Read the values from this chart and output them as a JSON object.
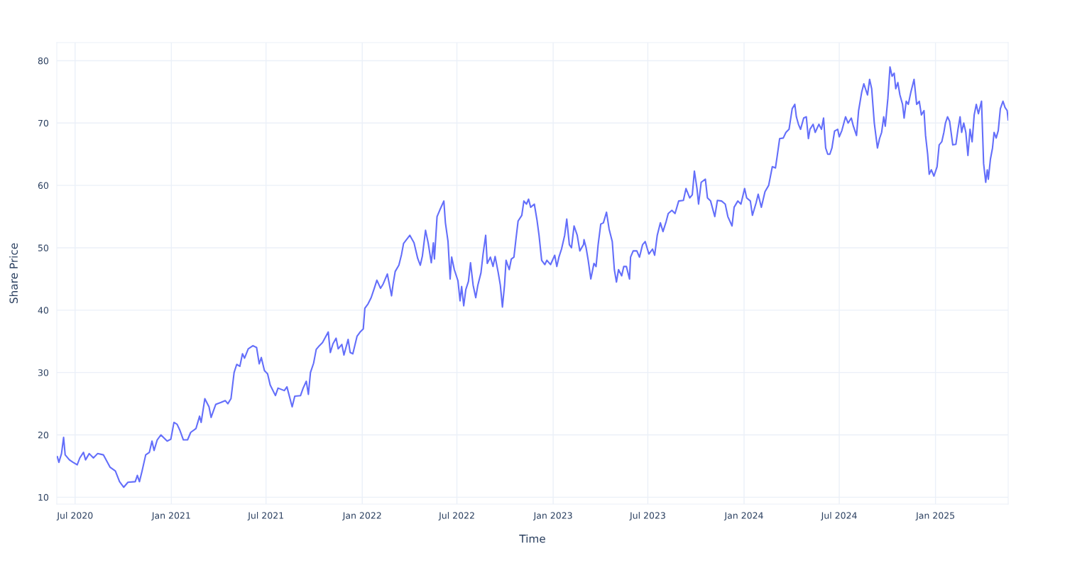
{
  "chart_data": {
    "type": "line",
    "xlabel": "Time",
    "ylabel": "Share Price",
    "grid": true,
    "marker": "none",
    "line_style": "solid",
    "xlim": [
      "2020-05-27",
      "2025-05-20"
    ],
    "ylim": [
      8.9,
      82.9
    ],
    "xticks": [
      {
        "value": "2020-07-01",
        "label": "Jul 2020"
      },
      {
        "value": "2021-01-01",
        "label": "Jan 2021"
      },
      {
        "value": "2021-07-01",
        "label": "Jul 2021"
      },
      {
        "value": "2022-01-01",
        "label": "Jan 2022"
      },
      {
        "value": "2022-07-01",
        "label": "Jul 2022"
      },
      {
        "value": "2023-01-01",
        "label": "Jan 2023"
      },
      {
        "value": "2023-07-01",
        "label": "Jul 2023"
      },
      {
        "value": "2024-01-01",
        "label": "Jan 2024"
      },
      {
        "value": "2024-07-01",
        "label": "Jul 2024"
      },
      {
        "value": "2025-01-01",
        "label": "Jan 2025"
      }
    ],
    "yticks": [
      10,
      20,
      30,
      40,
      50,
      60,
      70,
      80
    ],
    "series": [
      {
        "color": "#636efa",
        "x": [
          "2020-05-28",
          "2020-05-31",
          "2020-06-05",
          "2020-06-09",
          "2020-06-12",
          "2020-06-20",
          "2020-06-27",
          "2020-07-05",
          "2020-07-10",
          "2020-07-17",
          "2020-07-21",
          "2020-07-28",
          "2020-08-05",
          "2020-08-13",
          "2020-08-24",
          "2020-09-06",
          "2020-09-16",
          "2020-09-24",
          "2020-10-02",
          "2020-10-10",
          "2020-10-24",
          "2020-10-28",
          "2020-11-01",
          "2020-11-06",
          "2020-11-13",
          "2020-11-20",
          "2020-11-25",
          "2020-11-29",
          "2020-12-05",
          "2020-12-12",
          "2020-12-24",
          "2020-12-31",
          "2021-01-06",
          "2021-01-12",
          "2021-01-17",
          "2021-01-24",
          "2021-02-01",
          "2021-02-07",
          "2021-02-17",
          "2021-02-24",
          "2021-02-27",
          "2021-03-06",
          "2021-03-14",
          "2021-03-18",
          "2021-03-27",
          "2021-04-06",
          "2021-04-14",
          "2021-04-19",
          "2021-04-25",
          "2021-05-01",
          "2021-05-06",
          "2021-05-12",
          "2021-05-17",
          "2021-05-21",
          "2021-05-28",
          "2021-06-06",
          "2021-06-13",
          "2021-06-18",
          "2021-06-22",
          "2021-06-28",
          "2021-07-04",
          "2021-07-09",
          "2021-07-19",
          "2021-07-24",
          "2021-08-05",
          "2021-08-10",
          "2021-08-20",
          "2021-08-25",
          "2021-09-05",
          "2021-09-10",
          "2021-09-16",
          "2021-09-20",
          "2021-09-24",
          "2021-09-30",
          "2021-10-05",
          "2021-10-11",
          "2021-10-17",
          "2021-10-28",
          "2021-11-01",
          "2021-11-06",
          "2021-11-12",
          "2021-11-16",
          "2021-11-23",
          "2021-11-27",
          "2021-12-05",
          "2021-12-09",
          "2021-12-14",
          "2021-12-22",
          "2021-12-28",
          "2022-01-03",
          "2022-01-06",
          "2022-01-12",
          "2022-01-18",
          "2022-01-24",
          "2022-01-29",
          "2022-02-05",
          "2022-02-10",
          "2022-02-18",
          "2022-02-26",
          "2022-03-01",
          "2022-03-05",
          "2022-03-12",
          "2022-03-17",
          "2022-03-21",
          "2022-04-02",
          "2022-04-10",
          "2022-04-17",
          "2022-04-22",
          "2022-04-26",
          "2022-05-02",
          "2022-05-07",
          "2022-05-13",
          "2022-05-17",
          "2022-05-19",
          "2022-05-24",
          "2022-05-29",
          "2022-06-06",
          "2022-06-09",
          "2022-06-14",
          "2022-06-18",
          "2022-06-21",
          "2022-06-26",
          "2022-07-03",
          "2022-07-07",
          "2022-07-10",
          "2022-07-14",
          "2022-07-18",
          "2022-07-23",
          "2022-07-27",
          "2022-08-01",
          "2022-08-06",
          "2022-08-10",
          "2022-08-16",
          "2022-08-20",
          "2022-08-25",
          "2022-08-28",
          "2022-09-03",
          "2022-09-08",
          "2022-09-12",
          "2022-09-18",
          "2022-09-22",
          "2022-09-26",
          "2022-09-30",
          "2022-10-03",
          "2022-10-09",
          "2022-10-13",
          "2022-10-18",
          "2022-10-22",
          "2022-10-26",
          "2022-11-02",
          "2022-11-06",
          "2022-11-11",
          "2022-11-15",
          "2022-11-19",
          "2022-11-26",
          "2022-12-01",
          "2022-12-05",
          "2022-12-10",
          "2022-12-16",
          "2022-12-20",
          "2022-12-27",
          "2023-01-04",
          "2023-01-08",
          "2023-01-12",
          "2023-01-17",
          "2023-01-23",
          "2023-01-27",
          "2023-02-01",
          "2023-02-05",
          "2023-02-10",
          "2023-02-16",
          "2023-02-21",
          "2023-02-28",
          "2023-03-01",
          "2023-03-05",
          "2023-03-09",
          "2023-03-14",
          "2023-03-20",
          "2023-03-24",
          "2023-03-28",
          "2023-04-02",
          "2023-04-07",
          "2023-04-13",
          "2023-04-18",
          "2023-04-24",
          "2023-04-28",
          "2023-05-02",
          "2023-05-06",
          "2023-05-12",
          "2023-05-16",
          "2023-05-21",
          "2023-05-27",
          "2023-05-29",
          "2023-06-03",
          "2023-06-10",
          "2023-06-15",
          "2023-06-21",
          "2023-06-26",
          "2023-07-03",
          "2023-07-10",
          "2023-07-14",
          "2023-07-19",
          "2023-07-25",
          "2023-07-30",
          "2023-08-05",
          "2023-08-09",
          "2023-08-16",
          "2023-08-22",
          "2023-08-29",
          "2023-09-07",
          "2023-09-12",
          "2023-09-19",
          "2023-09-24",
          "2023-09-28",
          "2023-10-03",
          "2023-10-06",
          "2023-10-11",
          "2023-10-19",
          "2023-10-23",
          "2023-10-29",
          "2023-11-06",
          "2023-11-11",
          "2023-11-19",
          "2023-11-26",
          "2023-12-01",
          "2023-12-09",
          "2023-12-13",
          "2023-12-20",
          "2023-12-26",
          "2024-01-02",
          "2024-01-06",
          "2024-01-13",
          "2024-01-17",
          "2024-01-24",
          "2024-01-28",
          "2024-02-03",
          "2024-02-10",
          "2024-02-17",
          "2024-02-24",
          "2024-03-01",
          "2024-03-04",
          "2024-03-09",
          "2024-03-16",
          "2024-03-21",
          "2024-03-27",
          "2024-04-02",
          "2024-04-07",
          "2024-04-10",
          "2024-04-14",
          "2024-04-18",
          "2024-04-24",
          "2024-04-29",
          "2024-05-03",
          "2024-05-06",
          "2024-05-12",
          "2024-05-16",
          "2024-05-23",
          "2024-05-28",
          "2024-06-01",
          "2024-06-05",
          "2024-06-09",
          "2024-06-13",
          "2024-06-17",
          "2024-06-22",
          "2024-06-28",
          "2024-07-01",
          "2024-07-06",
          "2024-07-13",
          "2024-07-18",
          "2024-07-24",
          "2024-07-28",
          "2024-08-03",
          "2024-08-07",
          "2024-08-13",
          "2024-08-17",
          "2024-08-24",
          "2024-08-28",
          "2024-09-01",
          "2024-09-06",
          "2024-09-12",
          "2024-09-16",
          "2024-09-20",
          "2024-09-24",
          "2024-09-27",
          "2024-10-02",
          "2024-10-06",
          "2024-10-10",
          "2024-10-14",
          "2024-10-17",
          "2024-10-21",
          "2024-10-25",
          "2024-10-30",
          "2024-11-02",
          "2024-11-06",
          "2024-11-10",
          "2024-11-15",
          "2024-11-21",
          "2024-11-26",
          "2024-12-01",
          "2024-12-05",
          "2024-12-10",
          "2024-12-13",
          "2024-12-17",
          "2024-12-20",
          "2024-12-24",
          "2024-12-29",
          "2025-01-04",
          "2025-01-08",
          "2025-01-13",
          "2025-01-17",
          "2025-01-20",
          "2025-01-24",
          "2025-01-28",
          "2025-02-03",
          "2025-02-09",
          "2025-02-13",
          "2025-02-17",
          "2025-02-20",
          "2025-02-24",
          "2025-02-28",
          "2025-03-04",
          "2025-03-08",
          "2025-03-12",
          "2025-03-16",
          "2025-03-20",
          "2025-03-24",
          "2025-03-30",
          "2025-04-03",
          "2025-04-07",
          "2025-04-10",
          "2025-04-12",
          "2025-04-16",
          "2025-04-20",
          "2025-04-23",
          "2025-04-27",
          "2025-05-01",
          "2025-05-05",
          "2025-05-10",
          "2025-05-14",
          "2025-05-18",
          "2025-05-20"
        ],
        "values": [
          16.5,
          15.6,
          17.0,
          19.6,
          16.8,
          16.0,
          15.6,
          15.2,
          16.3,
          17.2,
          16.0,
          17.0,
          16.3,
          17.0,
          16.8,
          14.8,
          14.2,
          12.5,
          11.6,
          12.4,
          12.5,
          13.5,
          12.5,
          14.2,
          16.8,
          17.2,
          19.0,
          17.5,
          19.2,
          20.0,
          19.0,
          19.3,
          22.0,
          21.7,
          20.8,
          19.2,
          19.2,
          20.4,
          21.0,
          23.0,
          22.0,
          25.8,
          24.5,
          22.8,
          24.9,
          25.2,
          25.5,
          25.0,
          25.8,
          30.0,
          31.3,
          31.0,
          33.0,
          32.3,
          33.8,
          34.3,
          34.0,
          31.4,
          32.4,
          30.3,
          29.8,
          28.0,
          26.3,
          27.5,
          27.1,
          27.7,
          24.5,
          26.2,
          26.3,
          27.5,
          28.6,
          26.5,
          30.0,
          31.5,
          33.7,
          34.3,
          34.8,
          36.5,
          33.2,
          34.6,
          35.5,
          33.8,
          34.5,
          32.8,
          35.3,
          33.2,
          33.0,
          35.8,
          36.5,
          37.0,
          40.3,
          41.0,
          42.0,
          43.5,
          44.8,
          43.5,
          44.2,
          45.8,
          42.3,
          44.2,
          46.2,
          47.2,
          48.9,
          50.7,
          52.0,
          50.8,
          48.3,
          47.2,
          48.7,
          52.8,
          50.8,
          47.6,
          50.8,
          48.2,
          55.0,
          56.0,
          57.5,
          54.0,
          51.0,
          45.0,
          48.5,
          46.5,
          44.7,
          41.5,
          43.8,
          40.7,
          43.3,
          44.6,
          47.6,
          44.0,
          42.0,
          44.0,
          46.0,
          49.0,
          52.0,
          47.5,
          48.5,
          47.0,
          48.6,
          46.0,
          44.0,
          40.5,
          44.0,
          48.0,
          46.5,
          48.2,
          48.5,
          51.5,
          54.3,
          55.2,
          57.5,
          57.0,
          57.8,
          56.5,
          57.0,
          54.5,
          52.0,
          48.0,
          47.3,
          48.0,
          47.3,
          48.8,
          47.0,
          48.5,
          49.8,
          52.0,
          54.6,
          50.5,
          50.0,
          53.5,
          52.0,
          49.5,
          50.5,
          51.3,
          50.0,
          48.0,
          45.0,
          47.5,
          47.0,
          50.5,
          53.8,
          54.0,
          55.7,
          53.0,
          51.0,
          46.5,
          44.5,
          46.5,
          45.5,
          47.0,
          47.0,
          45.0,
          48.5,
          49.5,
          49.5,
          48.5,
          50.5,
          51.0,
          49.0,
          49.8,
          48.8,
          52.0,
          54.0,
          52.6,
          54.2,
          55.5,
          56.0,
          55.5,
          57.5,
          57.6,
          59.5,
          58.0,
          58.5,
          62.3,
          59.5,
          57.0,
          60.5,
          61.0,
          58.0,
          57.5,
          55.0,
          57.6,
          57.5,
          57.0,
          55.0,
          53.5,
          56.5,
          57.5,
          57.0,
          59.5,
          58.0,
          57.5,
          55.2,
          57.2,
          58.6,
          56.5,
          59.0,
          60.0,
          63.0,
          62.8,
          64.5,
          67.5,
          67.6,
          68.5,
          69.0,
          72.3,
          73.0,
          71.0,
          69.8,
          69.0,
          70.8,
          71.0,
          67.5,
          69.0,
          69.8,
          68.5,
          69.8,
          69.0,
          70.8,
          66.0,
          65.0,
          65.0,
          66.0,
          68.7,
          69.0,
          67.8,
          68.8,
          71.0,
          70.0,
          70.8,
          69.5,
          68.0,
          72.0,
          75.0,
          76.3,
          74.5,
          77.0,
          75.5,
          70.0,
          66.0,
          67.5,
          68.5,
          71.0,
          69.5,
          74.0,
          79.0,
          77.5,
          78.0,
          75.5,
          76.5,
          74.5,
          73.0,
          70.8,
          73.5,
          73.0,
          75.0,
          77.0,
          73.0,
          73.5,
          71.3,
          72.0,
          68.0,
          65.0,
          61.8,
          62.5,
          61.5,
          63.0,
          66.5,
          67.0,
          68.5,
          70.0,
          71.0,
          70.3,
          66.5,
          66.6,
          69.0,
          71.0,
          68.5,
          70.0,
          68.5,
          64.8,
          69.0,
          67.0,
          71.3,
          73.0,
          71.5,
          73.5,
          63.5,
          60.5,
          62.5,
          61.0,
          64.2,
          66.0,
          68.5,
          67.6,
          68.8,
          72.3,
          73.5,
          72.5,
          72.0,
          70.5
        ]
      }
    ]
  }
}
